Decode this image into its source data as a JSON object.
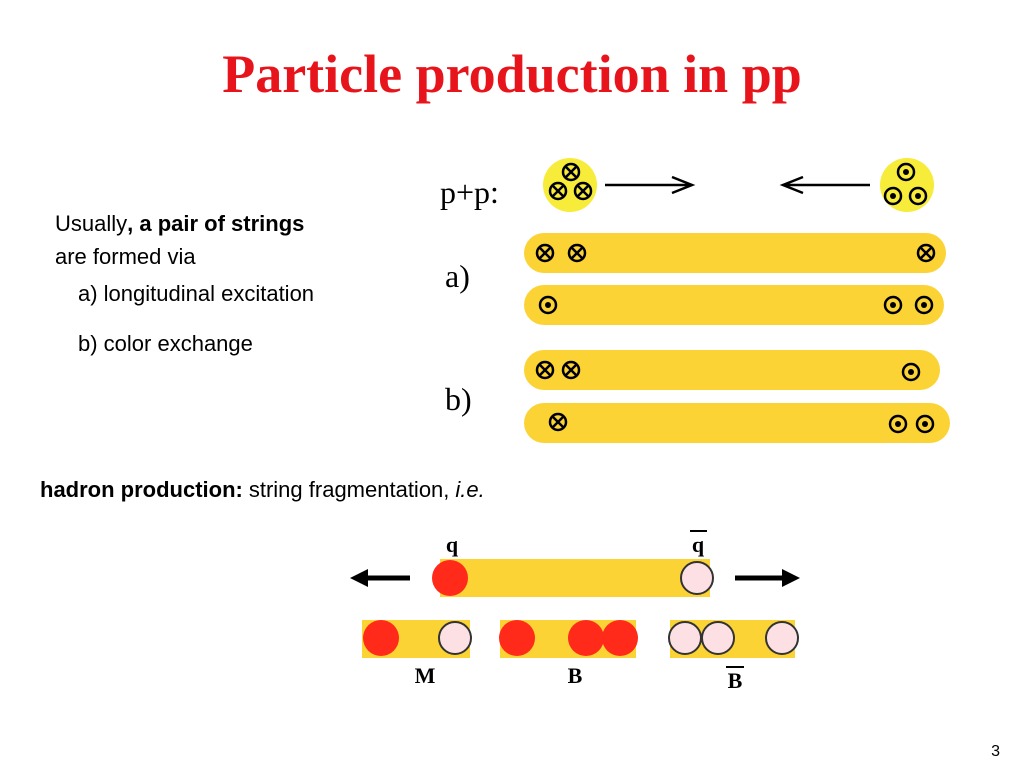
{
  "title": "Particle production in pp",
  "text": {
    "line1": [
      "Usually",
      ", a pair of strings"
    ],
    "line2": "are formed via",
    "items": [
      "a) longitudinal excitation",
      "b) color exchange"
    ]
  },
  "figure_top": {
    "initial": "p+p:",
    "labels": [
      "a)",
      "b)"
    ]
  },
  "hadron": {
    "label": "hadron production:",
    "text": "string fragmentation,",
    "emphasis": "i.e."
  },
  "figure_bottom": {
    "quark": "q",
    "antiquark": "q",
    "meson": "M",
    "baryon": "B",
    "antibaryon": "B"
  },
  "page_number": "3"
}
